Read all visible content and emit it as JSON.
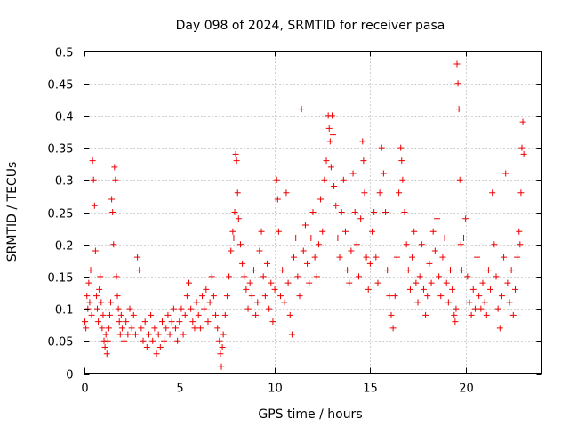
{
  "chart_data": {
    "type": "scatter",
    "title": "Day 098 of 2024, SRMTID for receiver pasa",
    "xlabel": "GPS time / hours",
    "ylabel": "SRMTID / TECUs",
    "xlim": [
      0,
      24
    ],
    "ylim": [
      0,
      0.5
    ],
    "xticks": [
      0,
      5,
      10,
      15,
      20
    ],
    "xtick_labels": [
      "0",
      "5",
      "10",
      "15",
      "20"
    ],
    "yticks": [
      0,
      0.05,
      0.1,
      0.15,
      0.2,
      0.25,
      0.3,
      0.35,
      0.4,
      0.45,
      0.5
    ],
    "ytick_labels": [
      "0",
      "0.05",
      "0.1",
      "0.15",
      "0.2",
      "0.25",
      "0.3",
      "0.35",
      "0.4",
      "0.45",
      "0.5"
    ],
    "grid": true,
    "marker": "+",
    "color": "#ee0000",
    "series": [
      {
        "name": "SRMTID",
        "points": [
          [
            0.05,
            0.08
          ],
          [
            0.1,
            0.07
          ],
          [
            0.15,
            0.12
          ],
          [
            0.2,
            0.1
          ],
          [
            0.25,
            0.14
          ],
          [
            0.3,
            0.11
          ],
          [
            0.35,
            0.16
          ],
          [
            0.4,
            0.09
          ],
          [
            0.45,
            0.33
          ],
          [
            0.5,
            0.3
          ],
          [
            0.55,
            0.26
          ],
          [
            0.6,
            0.19
          ],
          [
            0.65,
            0.12
          ],
          [
            0.7,
            0.1
          ],
          [
            0.75,
            0.08
          ],
          [
            0.8,
            0.13
          ],
          [
            0.85,
            0.15
          ],
          [
            0.9,
            0.11
          ],
          [
            0.95,
            0.07
          ],
          [
            1.0,
            0.09
          ],
          [
            1.05,
            0.05
          ],
          [
            1.1,
            0.04
          ],
          [
            1.15,
            0.06
          ],
          [
            1.2,
            0.03
          ],
          [
            1.25,
            0.05
          ],
          [
            1.3,
            0.07
          ],
          [
            1.35,
            0.09
          ],
          [
            1.4,
            0.11
          ],
          [
            1.45,
            0.27
          ],
          [
            1.5,
            0.25
          ],
          [
            1.55,
            0.2
          ],
          [
            1.6,
            0.32
          ],
          [
            1.65,
            0.3
          ],
          [
            1.7,
            0.15
          ],
          [
            1.75,
            0.12
          ],
          [
            1.8,
            0.1
          ],
          [
            1.85,
            0.08
          ],
          [
            1.9,
            0.06
          ],
          [
            1.95,
            0.09
          ],
          [
            2.0,
            0.07
          ],
          [
            2.1,
            0.05
          ],
          [
            2.2,
            0.08
          ],
          [
            2.3,
            0.06
          ],
          [
            2.4,
            0.1
          ],
          [
            2.5,
            0.07
          ],
          [
            2.6,
            0.09
          ],
          [
            2.7,
            0.06
          ],
          [
            2.8,
            0.18
          ],
          [
            2.9,
            0.16
          ],
          [
            3.0,
            0.07
          ],
          [
            3.1,
            0.05
          ],
          [
            3.2,
            0.08
          ],
          [
            3.3,
            0.04
          ],
          [
            3.4,
            0.06
          ],
          [
            3.5,
            0.09
          ],
          [
            3.6,
            0.05
          ],
          [
            3.7,
            0.07
          ],
          [
            3.8,
            0.03
          ],
          [
            3.9,
            0.06
          ],
          [
            4.0,
            0.04
          ],
          [
            4.1,
            0.08
          ],
          [
            4.2,
            0.05
          ],
          [
            4.3,
            0.07
          ],
          [
            4.4,
            0.09
          ],
          [
            4.5,
            0.06
          ],
          [
            4.6,
            0.08
          ],
          [
            4.7,
            0.1
          ],
          [
            4.8,
            0.07
          ],
          [
            4.9,
            0.05
          ],
          [
            5.0,
            0.08
          ],
          [
            5.1,
            0.1
          ],
          [
            5.2,
            0.06
          ],
          [
            5.3,
            0.09
          ],
          [
            5.4,
            0.12
          ],
          [
            5.5,
            0.14
          ],
          [
            5.6,
            0.1
          ],
          [
            5.7,
            0.08
          ],
          [
            5.8,
            0.07
          ],
          [
            5.9,
            0.11
          ],
          [
            6.0,
            0.09
          ],
          [
            6.1,
            0.07
          ],
          [
            6.2,
            0.12
          ],
          [
            6.3,
            0.1
          ],
          [
            6.4,
            0.13
          ],
          [
            6.5,
            0.08
          ],
          [
            6.6,
            0.11
          ],
          [
            6.7,
            0.15
          ],
          [
            6.8,
            0.12
          ],
          [
            6.9,
            0.09
          ],
          [
            7.0,
            0.07
          ],
          [
            7.1,
            0.05
          ],
          [
            7.15,
            0.03
          ],
          [
            7.2,
            0.01
          ],
          [
            7.25,
            0.04
          ],
          [
            7.3,
            0.06
          ],
          [
            7.4,
            0.09
          ],
          [
            7.5,
            0.12
          ],
          [
            7.6,
            0.15
          ],
          [
            7.7,
            0.19
          ],
          [
            7.8,
            0.22
          ],
          [
            7.85,
            0.21
          ],
          [
            7.9,
            0.25
          ],
          [
            7.95,
            0.34
          ],
          [
            8.0,
            0.33
          ],
          [
            8.05,
            0.28
          ],
          [
            8.1,
            0.24
          ],
          [
            8.2,
            0.2
          ],
          [
            8.3,
            0.17
          ],
          [
            8.4,
            0.15
          ],
          [
            8.5,
            0.13
          ],
          [
            8.6,
            0.1
          ],
          [
            8.7,
            0.14
          ],
          [
            8.8,
            0.12
          ],
          [
            8.9,
            0.16
          ],
          [
            9.0,
            0.09
          ],
          [
            9.1,
            0.11
          ],
          [
            9.2,
            0.19
          ],
          [
            9.3,
            0.22
          ],
          [
            9.4,
            0.15
          ],
          [
            9.5,
            0.12
          ],
          [
            9.6,
            0.17
          ],
          [
            9.7,
            0.1
          ],
          [
            9.8,
            0.14
          ],
          [
            9.9,
            0.08
          ],
          [
            10.0,
            0.13
          ],
          [
            10.1,
            0.3
          ],
          [
            10.15,
            0.27
          ],
          [
            10.2,
            0.22
          ],
          [
            10.3,
            0.12
          ],
          [
            10.4,
            0.16
          ],
          [
            10.5,
            0.11
          ],
          [
            10.6,
            0.28
          ],
          [
            10.7,
            0.14
          ],
          [
            10.8,
            0.09
          ],
          [
            10.9,
            0.06
          ],
          [
            11.0,
            0.18
          ],
          [
            11.1,
            0.21
          ],
          [
            11.2,
            0.15
          ],
          [
            11.3,
            0.12
          ],
          [
            11.4,
            0.41
          ],
          [
            11.5,
            0.19
          ],
          [
            11.6,
            0.23
          ],
          [
            11.7,
            0.17
          ],
          [
            11.8,
            0.14
          ],
          [
            11.9,
            0.21
          ],
          [
            12.0,
            0.25
          ],
          [
            12.1,
            0.18
          ],
          [
            12.2,
            0.15
          ],
          [
            12.3,
            0.2
          ],
          [
            12.4,
            0.27
          ],
          [
            12.5,
            0.22
          ],
          [
            12.6,
            0.3
          ],
          [
            12.7,
            0.33
          ],
          [
            12.8,
            0.4
          ],
          [
            12.85,
            0.38
          ],
          [
            12.9,
            0.36
          ],
          [
            12.95,
            0.32
          ],
          [
            13.0,
            0.4
          ],
          [
            13.05,
            0.37
          ],
          [
            13.1,
            0.29
          ],
          [
            13.2,
            0.26
          ],
          [
            13.3,
            0.21
          ],
          [
            13.4,
            0.18
          ],
          [
            13.5,
            0.25
          ],
          [
            13.6,
            0.3
          ],
          [
            13.7,
            0.22
          ],
          [
            13.8,
            0.16
          ],
          [
            13.9,
            0.14
          ],
          [
            14.0,
            0.19
          ],
          [
            14.1,
            0.31
          ],
          [
            14.2,
            0.25
          ],
          [
            14.3,
            0.2
          ],
          [
            14.4,
            0.15
          ],
          [
            14.5,
            0.24
          ],
          [
            14.6,
            0.36
          ],
          [
            14.65,
            0.33
          ],
          [
            14.7,
            0.28
          ],
          [
            14.8,
            0.18
          ],
          [
            14.9,
            0.13
          ],
          [
            15.0,
            0.17
          ],
          [
            15.1,
            0.22
          ],
          [
            15.2,
            0.25
          ],
          [
            15.3,
            0.18
          ],
          [
            15.4,
            0.14
          ],
          [
            15.5,
            0.28
          ],
          [
            15.6,
            0.35
          ],
          [
            15.7,
            0.31
          ],
          [
            15.8,
            0.25
          ],
          [
            15.9,
            0.16
          ],
          [
            16.0,
            0.12
          ],
          [
            16.1,
            0.09
          ],
          [
            16.2,
            0.07
          ],
          [
            16.3,
            0.12
          ],
          [
            16.4,
            0.18
          ],
          [
            16.5,
            0.28
          ],
          [
            16.6,
            0.35
          ],
          [
            16.65,
            0.33
          ],
          [
            16.7,
            0.3
          ],
          [
            16.8,
            0.25
          ],
          [
            16.9,
            0.2
          ],
          [
            17.0,
            0.16
          ],
          [
            17.1,
            0.13
          ],
          [
            17.2,
            0.18
          ],
          [
            17.3,
            0.22
          ],
          [
            17.4,
            0.14
          ],
          [
            17.5,
            0.11
          ],
          [
            17.6,
            0.15
          ],
          [
            17.7,
            0.2
          ],
          [
            17.8,
            0.13
          ],
          [
            17.9,
            0.09
          ],
          [
            18.0,
            0.12
          ],
          [
            18.1,
            0.17
          ],
          [
            18.2,
            0.14
          ],
          [
            18.3,
            0.22
          ],
          [
            18.4,
            0.19
          ],
          [
            18.5,
            0.24
          ],
          [
            18.6,
            0.15
          ],
          [
            18.7,
            0.12
          ],
          [
            18.8,
            0.18
          ],
          [
            18.9,
            0.21
          ],
          [
            19.0,
            0.14
          ],
          [
            19.1,
            0.11
          ],
          [
            19.2,
            0.16
          ],
          [
            19.3,
            0.13
          ],
          [
            19.4,
            0.09
          ],
          [
            19.45,
            0.08
          ],
          [
            19.5,
            0.1
          ],
          [
            19.55,
            0.48
          ],
          [
            19.6,
            0.45
          ],
          [
            19.65,
            0.41
          ],
          [
            19.7,
            0.3
          ],
          [
            19.75,
            0.2
          ],
          [
            19.8,
            0.16
          ],
          [
            19.9,
            0.21
          ],
          [
            20.0,
            0.24
          ],
          [
            20.1,
            0.15
          ],
          [
            20.2,
            0.11
          ],
          [
            20.3,
            0.09
          ],
          [
            20.4,
            0.13
          ],
          [
            20.5,
            0.1
          ],
          [
            20.6,
            0.18
          ],
          [
            20.7,
            0.12
          ],
          [
            20.8,
            0.1
          ],
          [
            20.9,
            0.14
          ],
          [
            21.0,
            0.11
          ],
          [
            21.1,
            0.09
          ],
          [
            21.2,
            0.16
          ],
          [
            21.3,
            0.13
          ],
          [
            21.4,
            0.28
          ],
          [
            21.5,
            0.2
          ],
          [
            21.6,
            0.15
          ],
          [
            21.7,
            0.1
          ],
          [
            21.8,
            0.07
          ],
          [
            21.9,
            0.12
          ],
          [
            22.0,
            0.18
          ],
          [
            22.1,
            0.31
          ],
          [
            22.2,
            0.14
          ],
          [
            22.3,
            0.11
          ],
          [
            22.4,
            0.16
          ],
          [
            22.5,
            0.09
          ],
          [
            22.6,
            0.13
          ],
          [
            22.7,
            0.18
          ],
          [
            22.8,
            0.22
          ],
          [
            22.85,
            0.2
          ],
          [
            22.9,
            0.28
          ],
          [
            22.95,
            0.35
          ],
          [
            23.0,
            0.39
          ],
          [
            23.05,
            0.34
          ]
        ]
      }
    ]
  }
}
